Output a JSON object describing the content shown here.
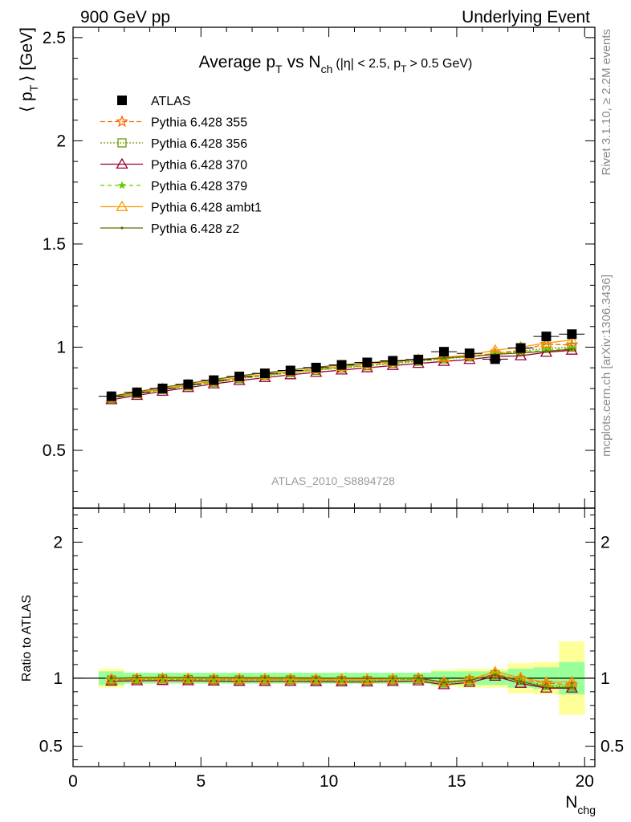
{
  "header": {
    "left": "900 GeV pp",
    "right": "Underlying Event"
  },
  "title": {
    "main": "Average p",
    "main_sub": "T",
    "vs": "vs N",
    "vs_sub": "ch",
    "cuts_a": "(|η| < 2.5, p",
    "cuts_sub": "T",
    "cuts_b": "> 0.5 GeV)"
  },
  "y_axis_label": {
    "open": "⟨ p",
    "sub": "T",
    "close": "⟩ [GeV]"
  },
  "ratio_axis_label": "Ratio to ATLAS",
  "x_axis_label": {
    "main": "N",
    "sub": "chg"
  },
  "analysis_id": "ATLAS_2010_S8894728",
  "side_labels": {
    "rivet": "Rivet 3.1.10, ≥ 2.2M events",
    "mcplots": "mcplots.cern.ch [arXiv:1306.3436]"
  },
  "chart_data": {
    "type": "line",
    "x_range": [
      0,
      20.4
    ],
    "main_ylim": [
      0.22,
      2.55
    ],
    "ratio_ylim": [
      0.35,
      2.25
    ],
    "x_ticks": [
      0,
      5,
      10,
      15,
      20
    ],
    "main_y_ticks": [
      0.5,
      1,
      1.5,
      2,
      2.5
    ],
    "main_y_tick_labels": [
      "0.5",
      "1",
      "1.5",
      "2",
      "2.5"
    ],
    "ratio_y_ticks": [
      0.5,
      1,
      2
    ],
    "ratio_y_tick_labels": [
      "0.5",
      "1",
      "2"
    ],
    "x": [
      1.5,
      2.5,
      3.5,
      4.5,
      5.5,
      6.5,
      7.5,
      8.5,
      9.5,
      10.5,
      11.5,
      12.5,
      13.5,
      14.5,
      15.5,
      16.5,
      17.5,
      18.5,
      19.5
    ],
    "data": {
      "name": "ATLAS",
      "values": [
        0.762,
        0.781,
        0.8,
        0.82,
        0.84,
        0.858,
        0.873,
        0.887,
        0.901,
        0.914,
        0.926,
        0.934,
        0.94,
        0.978,
        0.97,
        0.942,
        0.996,
        1.052,
        1.063
      ],
      "band_inner": [
        0.05,
        0.04,
        0.04,
        0.04,
        0.04,
        0.04,
        0.04,
        0.04,
        0.04,
        0.04,
        0.04,
        0.04,
        0.04,
        0.05,
        0.05,
        0.05,
        0.07,
        0.08,
        0.12
      ],
      "band_outer": [
        0.07,
        0.04,
        0.04,
        0.04,
        0.04,
        0.04,
        0.04,
        0.04,
        0.04,
        0.04,
        0.04,
        0.04,
        0.04,
        0.06,
        0.07,
        0.07,
        0.11,
        0.12,
        0.27
      ]
    },
    "series": [
      {
        "name": "Pythia 6.428 355",
        "color": "#ff6600",
        "dash": "6,3",
        "marker": "star-open",
        "values": [
          0.752,
          0.775,
          0.797,
          0.815,
          0.833,
          0.85,
          0.865,
          0.878,
          0.89,
          0.901,
          0.912,
          0.923,
          0.934,
          0.945,
          0.956,
          0.97,
          0.985,
          1.015,
          1.01
        ]
      },
      {
        "name": "Pythia 6.428 356",
        "color": "#669900",
        "dash": "2,2",
        "marker": "square-open",
        "values": [
          0.752,
          0.774,
          0.795,
          0.812,
          0.83,
          0.847,
          0.862,
          0.876,
          0.888,
          0.899,
          0.91,
          0.921,
          0.932,
          0.943,
          0.953,
          0.966,
          0.98,
          0.995,
          1.0
        ]
      },
      {
        "name": "Pythia 6.428 370",
        "color": "#990033",
        "dash": "",
        "marker": "triangle-open",
        "values": [
          0.745,
          0.766,
          0.786,
          0.804,
          0.822,
          0.838,
          0.852,
          0.866,
          0.878,
          0.889,
          0.9,
          0.911,
          0.921,
          0.931,
          0.94,
          0.955,
          0.958,
          0.975,
          0.985
        ]
      },
      {
        "name": "Pythia 6.428 379",
        "color": "#66cc00",
        "dash": "5,4",
        "marker": "star-filled",
        "values": [
          0.752,
          0.773,
          0.794,
          0.812,
          0.83,
          0.847,
          0.862,
          0.876,
          0.889,
          0.901,
          0.912,
          0.923,
          0.934,
          0.945,
          0.955,
          0.968,
          0.975,
          0.985,
          0.995
        ]
      },
      {
        "name": "Pythia 6.428 ambt1",
        "color": "#ff9900",
        "dash": "",
        "marker": "triangle-open",
        "values": [
          0.758,
          0.779,
          0.799,
          0.818,
          0.836,
          0.853,
          0.868,
          0.882,
          0.895,
          0.907,
          0.918,
          0.929,
          0.94,
          0.951,
          0.962,
          0.985,
          1.0,
          1.02,
          1.035
        ]
      },
      {
        "name": "Pythia 6.428 z2",
        "color": "#666600",
        "dash": "",
        "marker": "dot",
        "values": [
          0.762,
          0.784,
          0.805,
          0.824,
          0.843,
          0.861,
          0.876,
          0.89,
          0.903,
          0.914,
          0.924,
          0.933,
          0.94,
          0.948,
          0.955,
          0.965,
          0.972,
          0.98,
          0.99
        ]
      }
    ],
    "legend_placement": "top-left",
    "grid": false
  }
}
